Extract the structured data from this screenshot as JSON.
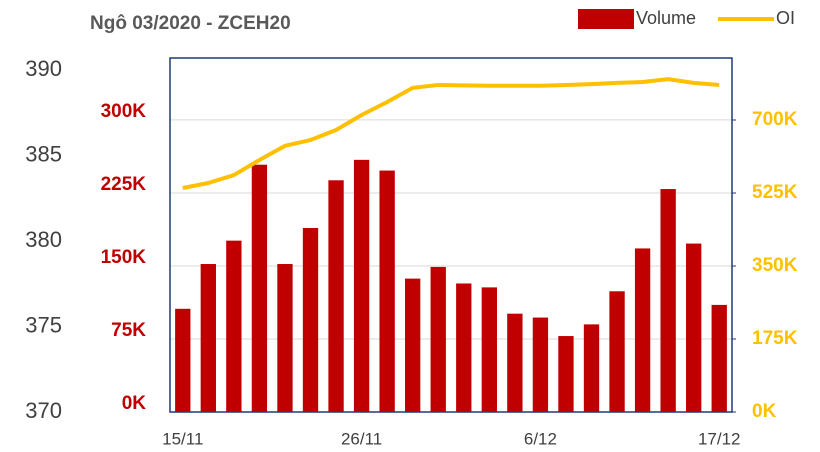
{
  "chart_data": {
    "type": "bar_line",
    "title": "Ngô 03/2020 - ZCEH20",
    "categories": [
      "15/11",
      null,
      null,
      null,
      null,
      null,
      null,
      "26/11",
      null,
      null,
      null,
      null,
      null,
      null,
      "6/12",
      null,
      null,
      null,
      null,
      null,
      null,
      "17/12"
    ],
    "series": [
      {
        "name": "Volume",
        "type": "bar",
        "color": "#c00000",
        "axis": "y",
        "values": [
          106000,
          152000,
          176000,
          254000,
          152000,
          189000,
          238000,
          259000,
          248000,
          137000,
          149000,
          132000,
          128000,
          101000,
          97000,
          78000,
          90000,
          124000,
          168000,
          229000,
          173000,
          110000
        ]
      },
      {
        "name": "OI",
        "type": "line",
        "color": "#ffc000",
        "axis": "y2",
        "values": [
          537000,
          549000,
          568000,
          604000,
          638000,
          652000,
          676000,
          712000,
          743000,
          777000,
          784000,
          783000,
          782000,
          782000,
          782000,
          784000,
          786000,
          789000,
          791000,
          798000,
          789000,
          784000
        ]
      }
    ],
    "ylim": [
      0,
      363600
    ],
    "yticks": [
      {
        "value": 0,
        "label": "0K"
      },
      {
        "value": 75000,
        "label": "75K"
      },
      {
        "value": 150000,
        "label": "150K"
      },
      {
        "value": 225000,
        "label": "225K"
      },
      {
        "value": 300000,
        "label": "300K"
      }
    ],
    "y2lim": [
      0,
      848600
    ],
    "y2ticks": [
      {
        "value": 0,
        "label": "0K"
      },
      {
        "value": 175000,
        "label": "175K"
      },
      {
        "value": 350000,
        "label": "350K"
      },
      {
        "value": 525000,
        "label": "525K"
      },
      {
        "value": 700000,
        "label": "700K"
      }
    ],
    "price_axis": {
      "ylim": [
        370,
        390.7
      ],
      "yticks": [
        370,
        375,
        380,
        385,
        390
      ]
    },
    "grid": true,
    "legend": "top-right"
  }
}
